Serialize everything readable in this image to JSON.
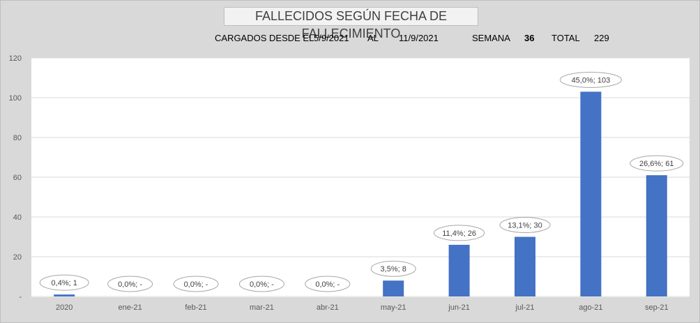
{
  "header": {
    "title": "FALLECIDOS SEGÚN FECHA DE FALLECIMIENTO",
    "loaded_label": "CARGADOS DESDE EL",
    "date_from": "5/9/2021",
    "al_label": "AL",
    "date_to": "11/9/2021",
    "week_label": "SEMANA",
    "week_value": "36",
    "total_label": "TOTAL",
    "total_value": "229"
  },
  "colors": {
    "bar": "#4472c4",
    "plot_bg": "#ffffff",
    "chart_bg": "#d9d9d9",
    "grid": "#d9d9d9"
  },
  "chart_data": {
    "type": "bar",
    "categories": [
      "2020",
      "ene-21",
      "feb-21",
      "mar-21",
      "abr-21",
      "may-21",
      "jun-21",
      "jul-21",
      "ago-21",
      "sep-21"
    ],
    "values": [
      1,
      0,
      0,
      0,
      0,
      8,
      26,
      30,
      103,
      61
    ],
    "data_labels": [
      "0,4%;  1",
      "0,0%;  -",
      "0,0%;  -",
      "0,0%;  -",
      "0,0%;  -",
      "3,5%;  8",
      "11,4%;  26",
      "13,1%;  30",
      "45,0%;  103",
      "26,6%;  61"
    ],
    "y_ticks": [
      "-",
      "20",
      "40",
      "60",
      "80",
      "100",
      "120"
    ],
    "ylim": [
      0,
      120
    ],
    "grid": true,
    "legend": "none"
  }
}
